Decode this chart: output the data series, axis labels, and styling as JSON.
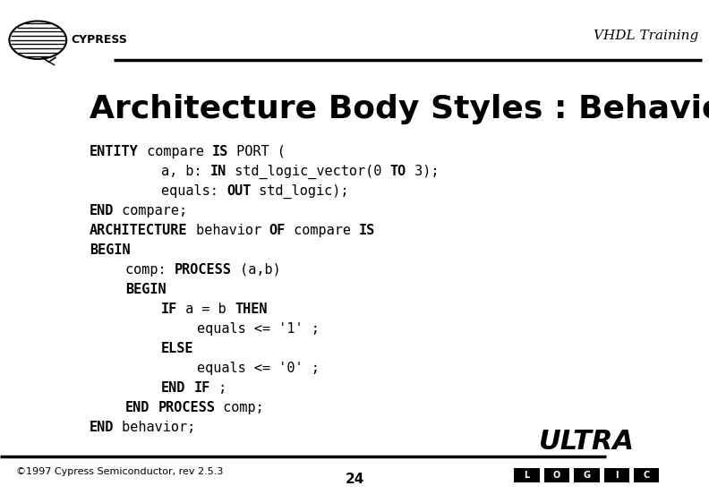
{
  "title": "Architecture Body Styles : Behavioral",
  "title_fontsize": 26,
  "header_text": "VHDL Training",
  "bg_color": "#ffffff",
  "footer_text": "©1997 Cypress Semiconductor, rev 2.5.3",
  "page_number": "24",
  "code_lines": [
    {
      "indent": 0,
      "parts": [
        {
          "text": "ENTITY",
          "bold": true
        },
        {
          "text": " compare ",
          "bold": false
        },
        {
          "text": "IS",
          "bold": true
        },
        {
          "text": " PORT (",
          "bold": false
        }
      ]
    },
    {
      "indent": 2,
      "parts": [
        {
          "text": "a, b: ",
          "bold": false
        },
        {
          "text": "IN",
          "bold": true
        },
        {
          "text": " std_logic_vector(0 ",
          "bold": false
        },
        {
          "text": "TO",
          "bold": true
        },
        {
          "text": " 3);",
          "bold": false
        }
      ]
    },
    {
      "indent": 2,
      "parts": [
        {
          "text": "equals: ",
          "bold": false
        },
        {
          "text": "OUT",
          "bold": true
        },
        {
          "text": " std_logic);",
          "bold": false
        }
      ]
    },
    {
      "indent": 0,
      "parts": [
        {
          "text": "END",
          "bold": true
        },
        {
          "text": " compare;",
          "bold": false
        }
      ]
    },
    {
      "indent": 0,
      "parts": [
        {
          "text": "ARCHITECTURE",
          "bold": true
        },
        {
          "text": " behavior ",
          "bold": false
        },
        {
          "text": "OF",
          "bold": true
        },
        {
          "text": " compare ",
          "bold": false
        },
        {
          "text": "IS",
          "bold": true
        }
      ]
    },
    {
      "indent": 0,
      "parts": [
        {
          "text": "BEGIN",
          "bold": true
        }
      ]
    },
    {
      "indent": 1,
      "parts": [
        {
          "text": "comp: ",
          "bold": false
        },
        {
          "text": "PROCESS",
          "bold": true
        },
        {
          "text": " (a,b)",
          "bold": false
        }
      ]
    },
    {
      "indent": 1,
      "parts": [
        {
          "text": "BEGIN",
          "bold": true
        }
      ]
    },
    {
      "indent": 2,
      "parts": [
        {
          "text": "IF",
          "bold": true
        },
        {
          "text": " a = b ",
          "bold": false
        },
        {
          "text": "THEN",
          "bold": true
        }
      ]
    },
    {
      "indent": 3,
      "parts": [
        {
          "text": "equals <= '1' ;",
          "bold": false
        }
      ]
    },
    {
      "indent": 2,
      "parts": [
        {
          "text": "ELSE",
          "bold": true
        }
      ]
    },
    {
      "indent": 3,
      "parts": [
        {
          "text": "equals <= '0' ;",
          "bold": false
        }
      ]
    },
    {
      "indent": 2,
      "parts": [
        {
          "text": "END",
          "bold": true
        },
        {
          "text": " ",
          "bold": false
        },
        {
          "text": "IF",
          "bold": true
        },
        {
          "text": " ;",
          "bold": false
        }
      ]
    },
    {
      "indent": 1,
      "parts": [
        {
          "text": "END",
          "bold": true
        },
        {
          "text": " ",
          "bold": false
        },
        {
          "text": "PROCESS",
          "bold": true
        },
        {
          "text": " comp;",
          "bold": false
        }
      ]
    },
    {
      "indent": 0,
      "parts": [
        {
          "text": "END",
          "bold": true
        },
        {
          "text": " behavior;",
          "bold": false
        }
      ]
    }
  ],
  "code_fontsize": 11,
  "indent_chars": 6
}
